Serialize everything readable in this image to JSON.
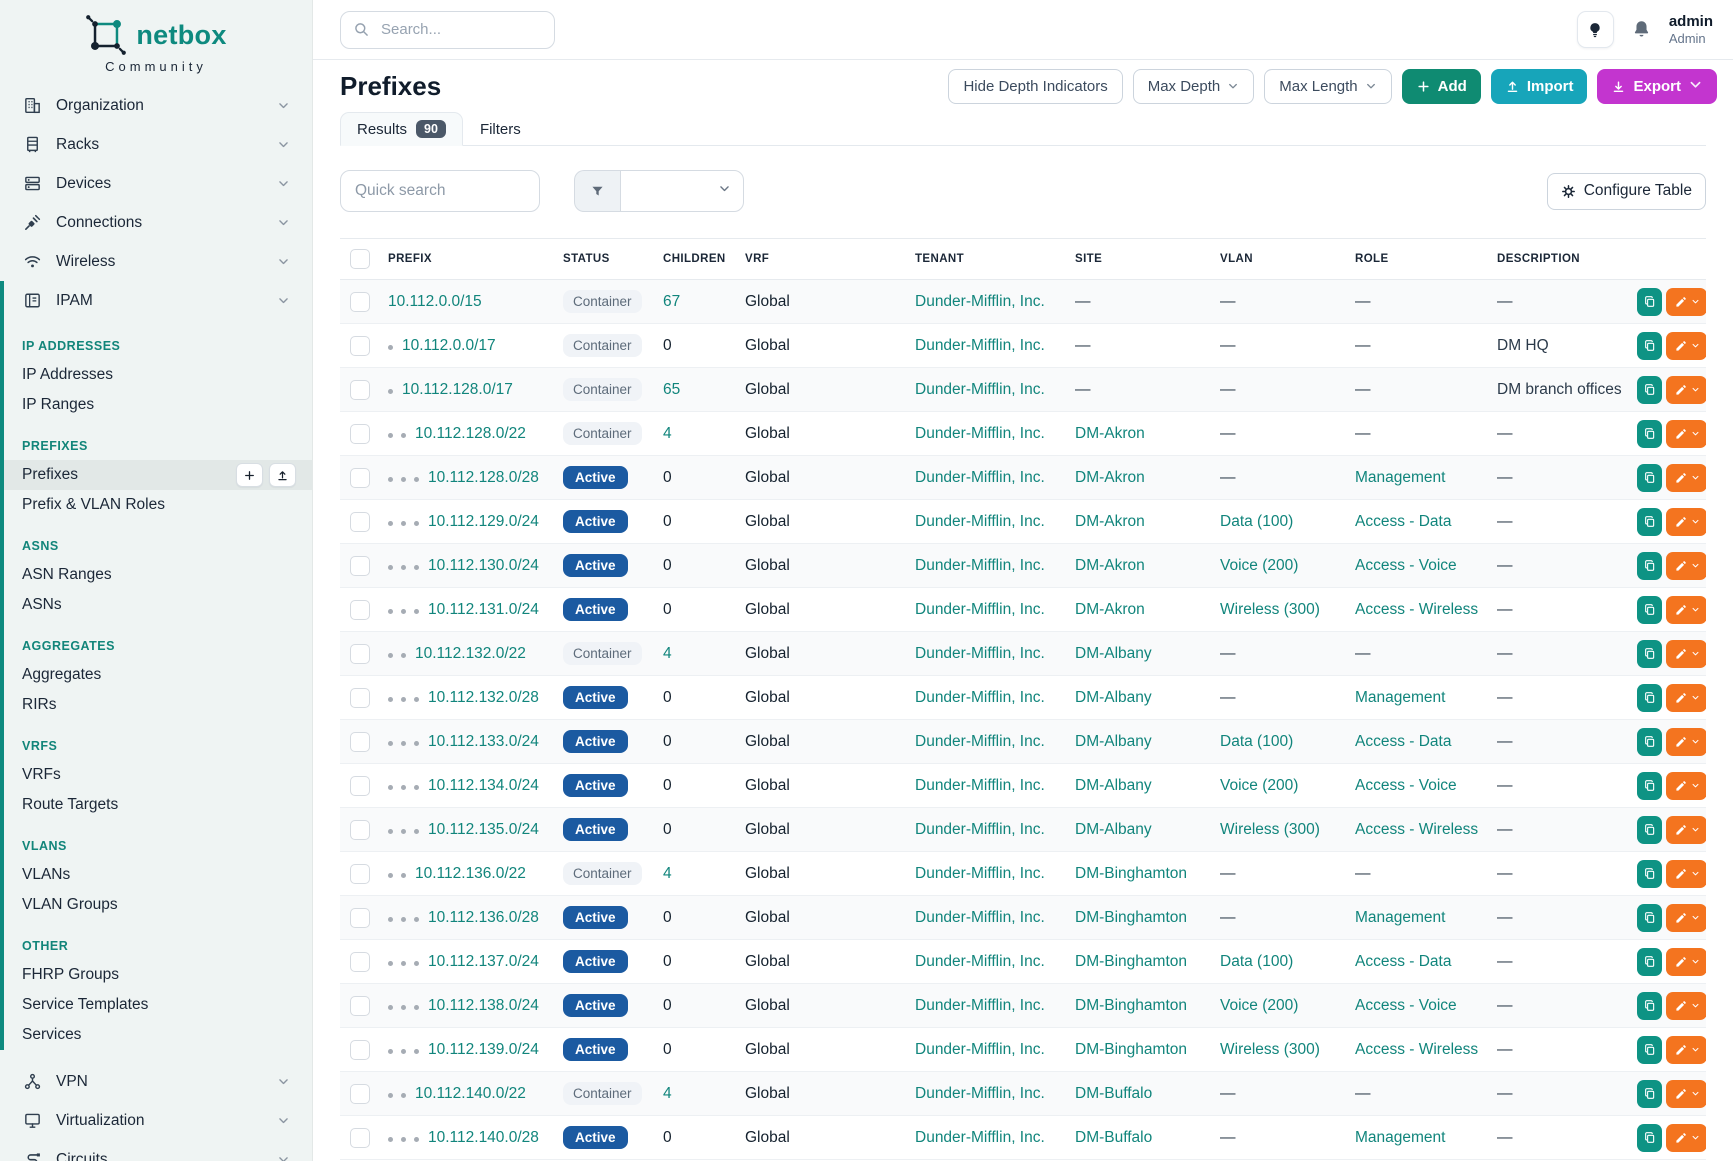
{
  "brand": {
    "name": "netbox",
    "subtitle": "Community"
  },
  "topbar": {
    "search_placeholder": "Search...",
    "user_name": "admin",
    "user_role": "Admin"
  },
  "sidebar": {
    "top_items": [
      {
        "label": "Organization",
        "icon": "building-icon"
      },
      {
        "label": "Racks",
        "icon": "rack-icon"
      },
      {
        "label": "Devices",
        "icon": "server-icon"
      },
      {
        "label": "Connections",
        "icon": "plug-icon"
      },
      {
        "label": "Wireless",
        "icon": "wifi-icon"
      }
    ],
    "ipam": {
      "label": "IPAM",
      "icon": "ipam-icon",
      "groups": [
        {
          "header": "IP ADDRESSES",
          "items": [
            {
              "label": "IP Addresses"
            },
            {
              "label": "IP Ranges"
            }
          ]
        },
        {
          "header": "PREFIXES",
          "items": [
            {
              "label": "Prefixes",
              "active": true,
              "quick_actions": true
            },
            {
              "label": "Prefix & VLAN Roles"
            }
          ]
        },
        {
          "header": "ASNS",
          "items": [
            {
              "label": "ASN Ranges"
            },
            {
              "label": "ASNs"
            }
          ]
        },
        {
          "header": "AGGREGATES",
          "items": [
            {
              "label": "Aggregates"
            },
            {
              "label": "RIRs"
            }
          ]
        },
        {
          "header": "VRFS",
          "items": [
            {
              "label": "VRFs"
            },
            {
              "label": "Route Targets"
            }
          ]
        },
        {
          "header": "VLANS",
          "items": [
            {
              "label": "VLANs"
            },
            {
              "label": "VLAN Groups"
            }
          ]
        },
        {
          "header": "OTHER",
          "items": [
            {
              "label": "FHRP Groups"
            },
            {
              "label": "Service Templates"
            },
            {
              "label": "Services"
            }
          ]
        }
      ]
    },
    "bottom_items": [
      {
        "label": "VPN",
        "icon": "vpn-icon"
      },
      {
        "label": "Virtualization",
        "icon": "monitor-icon"
      },
      {
        "label": "Circuits",
        "icon": "circuit-icon"
      }
    ]
  },
  "page": {
    "title": "Prefixes",
    "toolbar": {
      "hide_depth": "Hide Depth Indicators",
      "max_depth": "Max Depth",
      "max_length": "Max Length",
      "add": "Add",
      "import": "Import",
      "export": "Export"
    },
    "tabs": [
      {
        "label": "Results",
        "count": "90",
        "active": true
      },
      {
        "label": "Filters"
      }
    ],
    "quick_search_placeholder": "Quick search",
    "configure_table": "Configure Table"
  },
  "colors": {
    "brand_teal": "#0e8a7f",
    "link_teal": "#11857c",
    "active_badge_blue": "#1b5aa1",
    "add_green": "#0f8b72",
    "import_cyan": "#17a5ba",
    "export_magenta": "#c335cf",
    "edit_orange": "#f4741f"
  },
  "table": {
    "columns": [
      "PREFIX",
      "STATUS",
      "CHILDREN",
      "VRF",
      "TENANT",
      "SITE",
      "VLAN",
      "ROLE",
      "DESCRIPTION"
    ],
    "rows": [
      {
        "depth": 0,
        "prefix": "10.112.0.0/15",
        "status": "Container",
        "children": "67",
        "vrf": "Global",
        "tenant": "Dunder-Mifflin, Inc.",
        "site": "—",
        "vlan": "—",
        "role": "—",
        "description": "—"
      },
      {
        "depth": 1,
        "prefix": "10.112.0.0/17",
        "status": "Container",
        "children": "0",
        "vrf": "Global",
        "tenant": "Dunder-Mifflin, Inc.",
        "site": "—",
        "vlan": "—",
        "role": "—",
        "description": "DM HQ"
      },
      {
        "depth": 1,
        "prefix": "10.112.128.0/17",
        "status": "Container",
        "children": "65",
        "vrf": "Global",
        "tenant": "Dunder-Mifflin, Inc.",
        "site": "—",
        "vlan": "—",
        "role": "—",
        "description": "DM branch offices"
      },
      {
        "depth": 2,
        "prefix": "10.112.128.0/22",
        "status": "Container",
        "children": "4",
        "vrf": "Global",
        "tenant": "Dunder-Mifflin, Inc.",
        "site": "DM-Akron",
        "vlan": "—",
        "role": "—",
        "description": "—"
      },
      {
        "depth": 3,
        "prefix": "10.112.128.0/28",
        "status": "Active",
        "children": "0",
        "vrf": "Global",
        "tenant": "Dunder-Mifflin, Inc.",
        "site": "DM-Akron",
        "vlan": "—",
        "role": "Management",
        "description": "—"
      },
      {
        "depth": 3,
        "prefix": "10.112.129.0/24",
        "status": "Active",
        "children": "0",
        "vrf": "Global",
        "tenant": "Dunder-Mifflin, Inc.",
        "site": "DM-Akron",
        "vlan": "Data (100)",
        "role": "Access - Data",
        "description": "—"
      },
      {
        "depth": 3,
        "prefix": "10.112.130.0/24",
        "status": "Active",
        "children": "0",
        "vrf": "Global",
        "tenant": "Dunder-Mifflin, Inc.",
        "site": "DM-Akron",
        "vlan": "Voice (200)",
        "role": "Access - Voice",
        "description": "—"
      },
      {
        "depth": 3,
        "prefix": "10.112.131.0/24",
        "status": "Active",
        "children": "0",
        "vrf": "Global",
        "tenant": "Dunder-Mifflin, Inc.",
        "site": "DM-Akron",
        "vlan": "Wireless (300)",
        "role": "Access - Wireless",
        "description": "—"
      },
      {
        "depth": 2,
        "prefix": "10.112.132.0/22",
        "status": "Container",
        "children": "4",
        "vrf": "Global",
        "tenant": "Dunder-Mifflin, Inc.",
        "site": "DM-Albany",
        "vlan": "—",
        "role": "—",
        "description": "—"
      },
      {
        "depth": 3,
        "prefix": "10.112.132.0/28",
        "status": "Active",
        "children": "0",
        "vrf": "Global",
        "tenant": "Dunder-Mifflin, Inc.",
        "site": "DM-Albany",
        "vlan": "—",
        "role": "Management",
        "description": "—"
      },
      {
        "depth": 3,
        "prefix": "10.112.133.0/24",
        "status": "Active",
        "children": "0",
        "vrf": "Global",
        "tenant": "Dunder-Mifflin, Inc.",
        "site": "DM-Albany",
        "vlan": "Data (100)",
        "role": "Access - Data",
        "description": "—"
      },
      {
        "depth": 3,
        "prefix": "10.112.134.0/24",
        "status": "Active",
        "children": "0",
        "vrf": "Global",
        "tenant": "Dunder-Mifflin, Inc.",
        "site": "DM-Albany",
        "vlan": "Voice (200)",
        "role": "Access - Voice",
        "description": "—"
      },
      {
        "depth": 3,
        "prefix": "10.112.135.0/24",
        "status": "Active",
        "children": "0",
        "vrf": "Global",
        "tenant": "Dunder-Mifflin, Inc.",
        "site": "DM-Albany",
        "vlan": "Wireless (300)",
        "role": "Access - Wireless",
        "description": "—"
      },
      {
        "depth": 2,
        "prefix": "10.112.136.0/22",
        "status": "Container",
        "children": "4",
        "vrf": "Global",
        "tenant": "Dunder-Mifflin, Inc.",
        "site": "DM-Binghamton",
        "vlan": "—",
        "role": "—",
        "description": "—"
      },
      {
        "depth": 3,
        "prefix": "10.112.136.0/28",
        "status": "Active",
        "children": "0",
        "vrf": "Global",
        "tenant": "Dunder-Mifflin, Inc.",
        "site": "DM-Binghamton",
        "vlan": "—",
        "role": "Management",
        "description": "—"
      },
      {
        "depth": 3,
        "prefix": "10.112.137.0/24",
        "status": "Active",
        "children": "0",
        "vrf": "Global",
        "tenant": "Dunder-Mifflin, Inc.",
        "site": "DM-Binghamton",
        "vlan": "Data (100)",
        "role": "Access - Data",
        "description": "—"
      },
      {
        "depth": 3,
        "prefix": "10.112.138.0/24",
        "status": "Active",
        "children": "0",
        "vrf": "Global",
        "tenant": "Dunder-Mifflin, Inc.",
        "site": "DM-Binghamton",
        "vlan": "Voice (200)",
        "role": "Access - Voice",
        "description": "—"
      },
      {
        "depth": 3,
        "prefix": "10.112.139.0/24",
        "status": "Active",
        "children": "0",
        "vrf": "Global",
        "tenant": "Dunder-Mifflin, Inc.",
        "site": "DM-Binghamton",
        "vlan": "Wireless (300)",
        "role": "Access - Wireless",
        "description": "—"
      },
      {
        "depth": 2,
        "prefix": "10.112.140.0/22",
        "status": "Container",
        "children": "4",
        "vrf": "Global",
        "tenant": "Dunder-Mifflin, Inc.",
        "site": "DM-Buffalo",
        "vlan": "—",
        "role": "—",
        "description": "—"
      },
      {
        "depth": 3,
        "prefix": "10.112.140.0/28",
        "status": "Active",
        "children": "0",
        "vrf": "Global",
        "tenant": "Dunder-Mifflin, Inc.",
        "site": "DM-Buffalo",
        "vlan": "—",
        "role": "Management",
        "description": "—"
      }
    ]
  }
}
